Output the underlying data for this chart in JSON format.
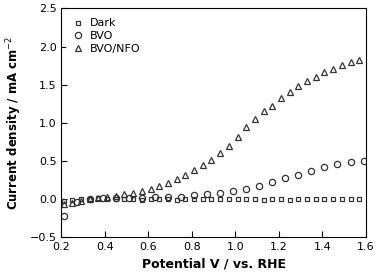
{
  "title": "",
  "xlabel": "Potential V / vs. RHE",
  "ylabel": "Current density / mA cm⁻²",
  "xlim": [
    0.2,
    1.6
  ],
  "ylim": [
    -0.5,
    2.5
  ],
  "xticks": [
    0.2,
    0.4,
    0.6,
    0.8,
    1.0,
    1.2,
    1.4,
    1.6
  ],
  "yticks": [
    -0.5,
    0.0,
    0.5,
    1.0,
    1.5,
    2.0,
    2.5
  ],
  "legend_labels": [
    "Dark",
    "BVO",
    "BVO/NFO"
  ],
  "marker_edgecolor": "#333333",
  "background_color": "#ffffff",
  "dark_x": [
    0.21,
    0.25,
    0.29,
    0.33,
    0.37,
    0.41,
    0.45,
    0.49,
    0.53,
    0.57,
    0.61,
    0.65,
    0.69,
    0.73,
    0.77,
    0.81,
    0.85,
    0.89,
    0.93,
    0.97,
    1.01,
    1.05,
    1.09,
    1.13,
    1.17,
    1.21,
    1.25,
    1.29,
    1.33,
    1.37,
    1.41,
    1.45,
    1.49,
    1.53,
    1.57
  ],
  "dark_y": [
    -0.02,
    -0.01,
    0.0,
    0.0,
    0.01,
    0.0,
    0.0,
    0.0,
    0.0,
    -0.01,
    0.0,
    0.0,
    0.0,
    -0.01,
    0.0,
    0.0,
    0.0,
    0.0,
    0.0,
    0.0,
    0.0,
    0.0,
    0.0,
    -0.01,
    0.0,
    0.0,
    -0.01,
    0.0,
    0.0,
    0.0,
    0.0,
    0.0,
    0.0,
    0.0,
    0.0
  ],
  "bvo_x": [
    0.21,
    0.27,
    0.33,
    0.39,
    0.45,
    0.51,
    0.57,
    0.63,
    0.69,
    0.75,
    0.81,
    0.87,
    0.93,
    0.99,
    1.05,
    1.11,
    1.17,
    1.23,
    1.29,
    1.35,
    1.41,
    1.47,
    1.53,
    1.59
  ],
  "bvo_y": [
    -0.22,
    -0.04,
    0.0,
    0.01,
    0.01,
    0.01,
    0.01,
    0.02,
    0.02,
    0.03,
    0.05,
    0.06,
    0.08,
    0.1,
    0.13,
    0.17,
    0.22,
    0.27,
    0.32,
    0.37,
    0.42,
    0.46,
    0.49,
    0.5
  ],
  "nfo_x": [
    0.21,
    0.25,
    0.29,
    0.33,
    0.37,
    0.41,
    0.45,
    0.49,
    0.53,
    0.57,
    0.61,
    0.65,
    0.69,
    0.73,
    0.77,
    0.81,
    0.85,
    0.89,
    0.93,
    0.97,
    1.01,
    1.05,
    1.09,
    1.13,
    1.17,
    1.21,
    1.25,
    1.29,
    1.33,
    1.37,
    1.41,
    1.45,
    1.49,
    1.53,
    1.57
  ],
  "nfo_y": [
    -0.06,
    -0.05,
    -0.02,
    0.0,
    0.01,
    0.03,
    0.04,
    0.06,
    0.08,
    0.1,
    0.13,
    0.17,
    0.21,
    0.26,
    0.31,
    0.38,
    0.44,
    0.51,
    0.6,
    0.7,
    0.82,
    0.94,
    1.05,
    1.16,
    1.22,
    1.32,
    1.4,
    1.48,
    1.55,
    1.6,
    1.66,
    1.71,
    1.76,
    1.8,
    1.83
  ]
}
